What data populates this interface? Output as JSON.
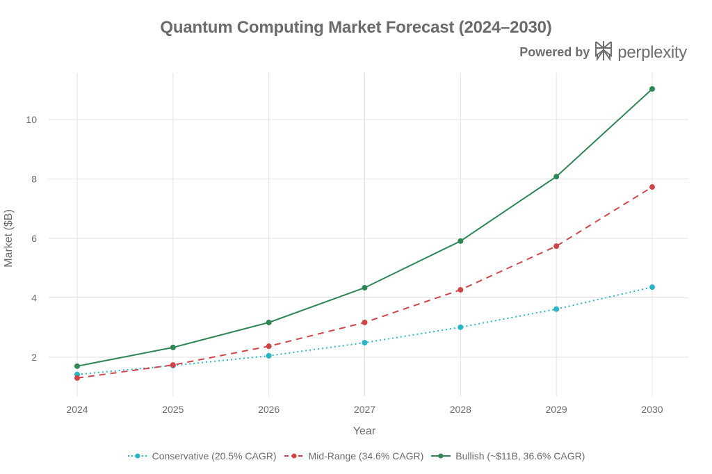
{
  "header": {
    "title": "Quantum Computing Market Forecast (2024–2030)",
    "powered_by": "Powered by",
    "brand": "perplexity",
    "brand_icon": "perplexity-logo-icon"
  },
  "chart_data": {
    "type": "line",
    "title": "Quantum Computing Market Forecast (2024–2030)",
    "xlabel": "Year",
    "ylabel": "Market ($B)",
    "x": [
      2024,
      2025,
      2026,
      2027,
      2028,
      2029,
      2030
    ],
    "x_tick_labels": [
      "2024",
      "2025",
      "2026",
      "2027",
      "2028",
      "2029",
      "2030"
    ],
    "y_ticks": [
      2,
      4,
      6,
      8,
      10
    ],
    "y_tick_labels": [
      "2",
      "4",
      "6",
      "8",
      "10"
    ],
    "ylim": [
      0.8,
      11.5
    ],
    "grid": true,
    "legend_position": "bottom-center",
    "series": [
      {
        "name": "Conservative (20.5% CAGR)",
        "color": "#2BB3C8",
        "line_style": "dotted",
        "values": [
          1.42,
          1.72,
          2.05,
          2.49,
          3.01,
          3.62,
          4.36
        ]
      },
      {
        "name": "Mid-Range (34.6% CAGR)",
        "color": "#D0454A",
        "line_style": "dashed",
        "values": [
          1.3,
          1.74,
          2.37,
          3.17,
          4.27,
          5.74,
          7.73
        ]
      },
      {
        "name": "Bullish (~$11B, 36.6% CAGR)",
        "color": "#2E8555",
        "line_style": "solid",
        "values": [
          1.7,
          2.33,
          3.17,
          4.34,
          5.91,
          8.08,
          11.03
        ]
      }
    ]
  }
}
